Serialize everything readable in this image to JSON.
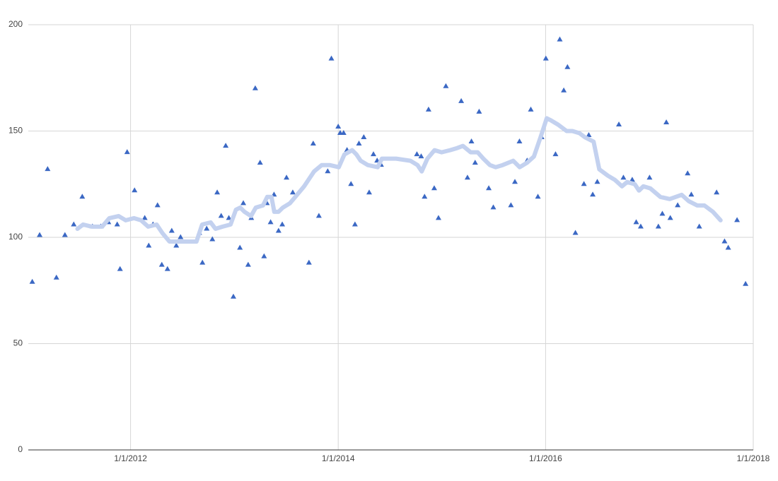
{
  "chart_data": {
    "type": "scatter",
    "xlim": [
      "2011-01-06",
      "2018-01-01"
    ],
    "xticks": [
      {
        "value": "2012-01-01",
        "label": "1/1/2012"
      },
      {
        "value": "2014-01-01",
        "label": "1/1/2014"
      },
      {
        "value": "2016-01-01",
        "label": "1/1/2016"
      },
      {
        "value": "2018-01-01",
        "label": "1/1/2018"
      }
    ],
    "ylim": [
      0,
      200
    ],
    "yticks": [
      0,
      50,
      100,
      150,
      200
    ],
    "grid": true,
    "series": [
      {
        "mode": "markers",
        "marker": "triangle",
        "color": "#3b68c4",
        "x": [
          "2011-01-20",
          "2011-02-15",
          "2011-03-15",
          "2011-04-15",
          "2011-05-15",
          "2011-06-15",
          "2011-07-15",
          "2011-08-20",
          "2011-09-18",
          "2011-10-15",
          "2011-11-15",
          "2011-11-25",
          "2011-12-20",
          "2012-01-15",
          "2012-02-20",
          "2012-03-05",
          "2012-03-20",
          "2012-04-05",
          "2012-04-20",
          "2012-05-10",
          "2012-05-25",
          "2012-06-10",
          "2012-06-25",
          "2012-08-30",
          "2012-09-10",
          "2012-09-25",
          "2012-10-15",
          "2012-11-01",
          "2012-11-15",
          "2012-12-01",
          "2012-12-12",
          "2012-12-28",
          "2013-01-20",
          "2013-02-01",
          "2013-02-18",
          "2013-03-01",
          "2013-03-15",
          "2013-04-01",
          "2013-04-15",
          "2013-04-25",
          "2013-05-08",
          "2013-05-20",
          "2013-06-05",
          "2013-06-18",
          "2013-07-03",
          "2013-07-25",
          "2013-09-20",
          "2013-10-05",
          "2013-10-25",
          "2013-11-25",
          "2013-12-08",
          "2014-01-01",
          "2014-01-08",
          "2014-01-20",
          "2014-02-01",
          "2014-02-15",
          "2014-03-01",
          "2014-03-15",
          "2014-04-01",
          "2014-04-20",
          "2014-05-05",
          "2014-05-18",
          "2014-06-01",
          "2014-10-05",
          "2014-10-20",
          "2014-11-01",
          "2014-11-15",
          "2014-12-05",
          "2014-12-20",
          "2015-01-15",
          "2015-03-10",
          "2015-04-01",
          "2015-04-15",
          "2015-04-28",
          "2015-05-12",
          "2015-06-15",
          "2015-07-01",
          "2015-09-01",
          "2015-09-15",
          "2015-10-01",
          "2015-10-28",
          "2015-11-10",
          "2015-12-05",
          "2015-12-18",
          "2016-01-02",
          "2016-02-05",
          "2016-02-20",
          "2016-03-05",
          "2016-03-18",
          "2016-04-15",
          "2016-05-15",
          "2016-06-01",
          "2016-06-15",
          "2016-07-01",
          "2016-09-15",
          "2016-10-01",
          "2016-11-01",
          "2016-11-15",
          "2016-12-01",
          "2017-01-01",
          "2017-02-01",
          "2017-02-15",
          "2017-03-01",
          "2017-03-15",
          "2017-04-10",
          "2017-05-15",
          "2017-05-28",
          "2017-06-25",
          "2017-08-25",
          "2017-09-22",
          "2017-10-05",
          "2017-11-05",
          "2017-12-05"
        ],
        "values": [
          79,
          101,
          132,
          81,
          101,
          106,
          119,
          105,
          105,
          107,
          106,
          85,
          140,
          122,
          109,
          96,
          106,
          115,
          87,
          85,
          103,
          96,
          100,
          102,
          88,
          104,
          99,
          121,
          110,
          143,
          109,
          72,
          95,
          116,
          87,
          109,
          170,
          135,
          91,
          116,
          107,
          120,
          103,
          106,
          128,
          121,
          88,
          144,
          110,
          131,
          184,
          152,
          149,
          149,
          141,
          125,
          106,
          144,
          147,
          121,
          139,
          136,
          134,
          139,
          138,
          119,
          160,
          123,
          109,
          171,
          164,
          128,
          145,
          135,
          159,
          123,
          114,
          115,
          126,
          145,
          136,
          160,
          119,
          147,
          184,
          139,
          193,
          169,
          180,
          102,
          125,
          148,
          120,
          126,
          153,
          128,
          127,
          107,
          105,
          128,
          105,
          111,
          154,
          109,
          115,
          130,
          120,
          105,
          121,
          98,
          95,
          108,
          78
        ]
      },
      {
        "mode": "line",
        "color": "#c3d1ef",
        "x": [
          "2011-06-28",
          "2011-07-18",
          "2011-08-17",
          "2011-09-23",
          "2011-10-18",
          "2011-11-20",
          "2011-12-15",
          "2012-01-13",
          "2012-02-07",
          "2012-03-03",
          "2012-04-02",
          "2012-04-22",
          "2012-05-17",
          "2012-06-24",
          "2012-08-20",
          "2012-09-09",
          "2012-10-09",
          "2012-10-26",
          "2012-11-20",
          "2012-12-18",
          "2013-01-06",
          "2013-01-21",
          "2013-02-05",
          "2013-02-28",
          "2013-03-17",
          "2013-04-11",
          "2013-04-26",
          "2013-05-11",
          "2013-05-21",
          "2013-06-05",
          "2013-06-20",
          "2013-07-15",
          "2013-08-09",
          "2013-09-03",
          "2013-10-08",
          "2013-11-04",
          "2013-12-02",
          "2014-01-03",
          "2014-01-23",
          "2014-02-19",
          "2014-03-06",
          "2014-03-21",
          "2014-04-15",
          "2014-05-20",
          "2014-06-04",
          "2014-07-24",
          "2014-09-12",
          "2014-10-07",
          "2014-10-22",
          "2014-11-11",
          "2014-12-06",
          "2014-12-31",
          "2015-01-30",
          "2015-02-24",
          "2015-03-16",
          "2015-04-12",
          "2015-05-07",
          "2015-05-27",
          "2015-06-19",
          "2015-07-09",
          "2015-08-03",
          "2015-09-09",
          "2015-10-02",
          "2015-10-27",
          "2015-11-21",
          "2015-12-14",
          "2016-01-05",
          "2016-01-20",
          "2016-02-14",
          "2016-03-15",
          "2016-04-04",
          "2016-04-29",
          "2016-05-19",
          "2016-06-18",
          "2016-07-08",
          "2016-08-07",
          "2016-09-01",
          "2016-09-26",
          "2016-10-14",
          "2016-11-10",
          "2016-11-25",
          "2016-12-10",
          "2017-01-04",
          "2017-02-08",
          "2017-03-13",
          "2017-04-24",
          "2017-05-19",
          "2017-06-18",
          "2017-07-13",
          "2017-08-12",
          "2017-09-08"
        ],
        "values": [
          104,
          106,
          105,
          105,
          109,
          110,
          108,
          109,
          108,
          105,
          106,
          102,
          98,
          98,
          98,
          106,
          107,
          104,
          105,
          106,
          113,
          114,
          112,
          110,
          114,
          115,
          119,
          119,
          112,
          112,
          114,
          116,
          120,
          124,
          131,
          134,
          134,
          133,
          139,
          141,
          139,
          136,
          134,
          133,
          137,
          137,
          136,
          134,
          131,
          137,
          141,
          140,
          141,
          142,
          143,
          140,
          140,
          137,
          134,
          133,
          134,
          136,
          133,
          135,
          138,
          147,
          156,
          155,
          153,
          150,
          150,
          149,
          147,
          145,
          132,
          129,
          127,
          124,
          126,
          125,
          122,
          124,
          123,
          119,
          118,
          120,
          117,
          115,
          115,
          112,
          108
        ]
      }
    ]
  }
}
